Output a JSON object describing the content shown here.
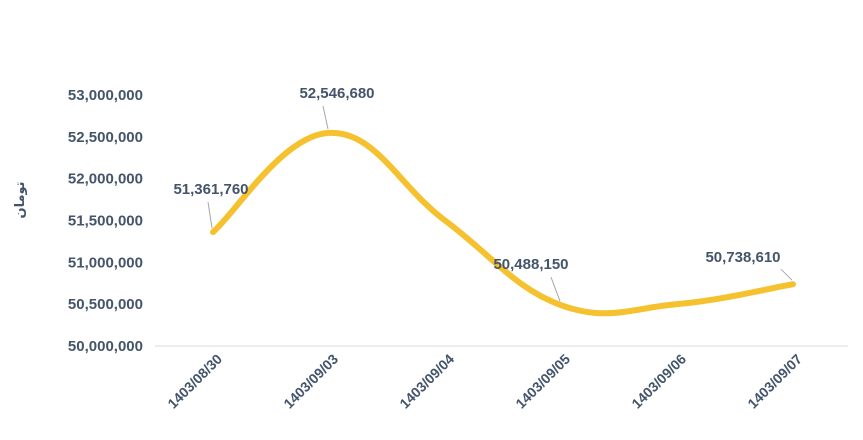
{
  "chart_data": {
    "type": "line",
    "title": "",
    "xlabel": "",
    "ylabel": "تومان",
    "ylim": [
      50000000,
      53000000
    ],
    "y_ticks": [
      {
        "value": 50000000,
        "label": "50,000,000"
      },
      {
        "value": 50500000,
        "label": "50,500,000"
      },
      {
        "value": 51000000,
        "label": "51,000,000"
      },
      {
        "value": 51500000,
        "label": "51,500,000"
      },
      {
        "value": 52000000,
        "label": "52,000,000"
      },
      {
        "value": 52500000,
        "label": "52,500,000"
      },
      {
        "value": 53000000,
        "label": "53,000,000"
      }
    ],
    "categories": [
      "1403/08/30",
      "1403/09/03",
      "1403/09/04",
      "1403/09/05",
      "1403/09/06",
      "1403/09/07"
    ],
    "series": [
      {
        "values": [
          51361760,
          52546680,
          51500000,
          50488150,
          50500000,
          50738610
        ],
        "data_labels": [
          "51,361,760",
          "52,546,680",
          "",
          "50,488,150",
          "",
          "50,738,610"
        ],
        "color": "#f5c12e"
      }
    ],
    "grid": false,
    "legend": "none",
    "baseline_color": "#d9d9d9",
    "label_color": "#44546a"
  }
}
